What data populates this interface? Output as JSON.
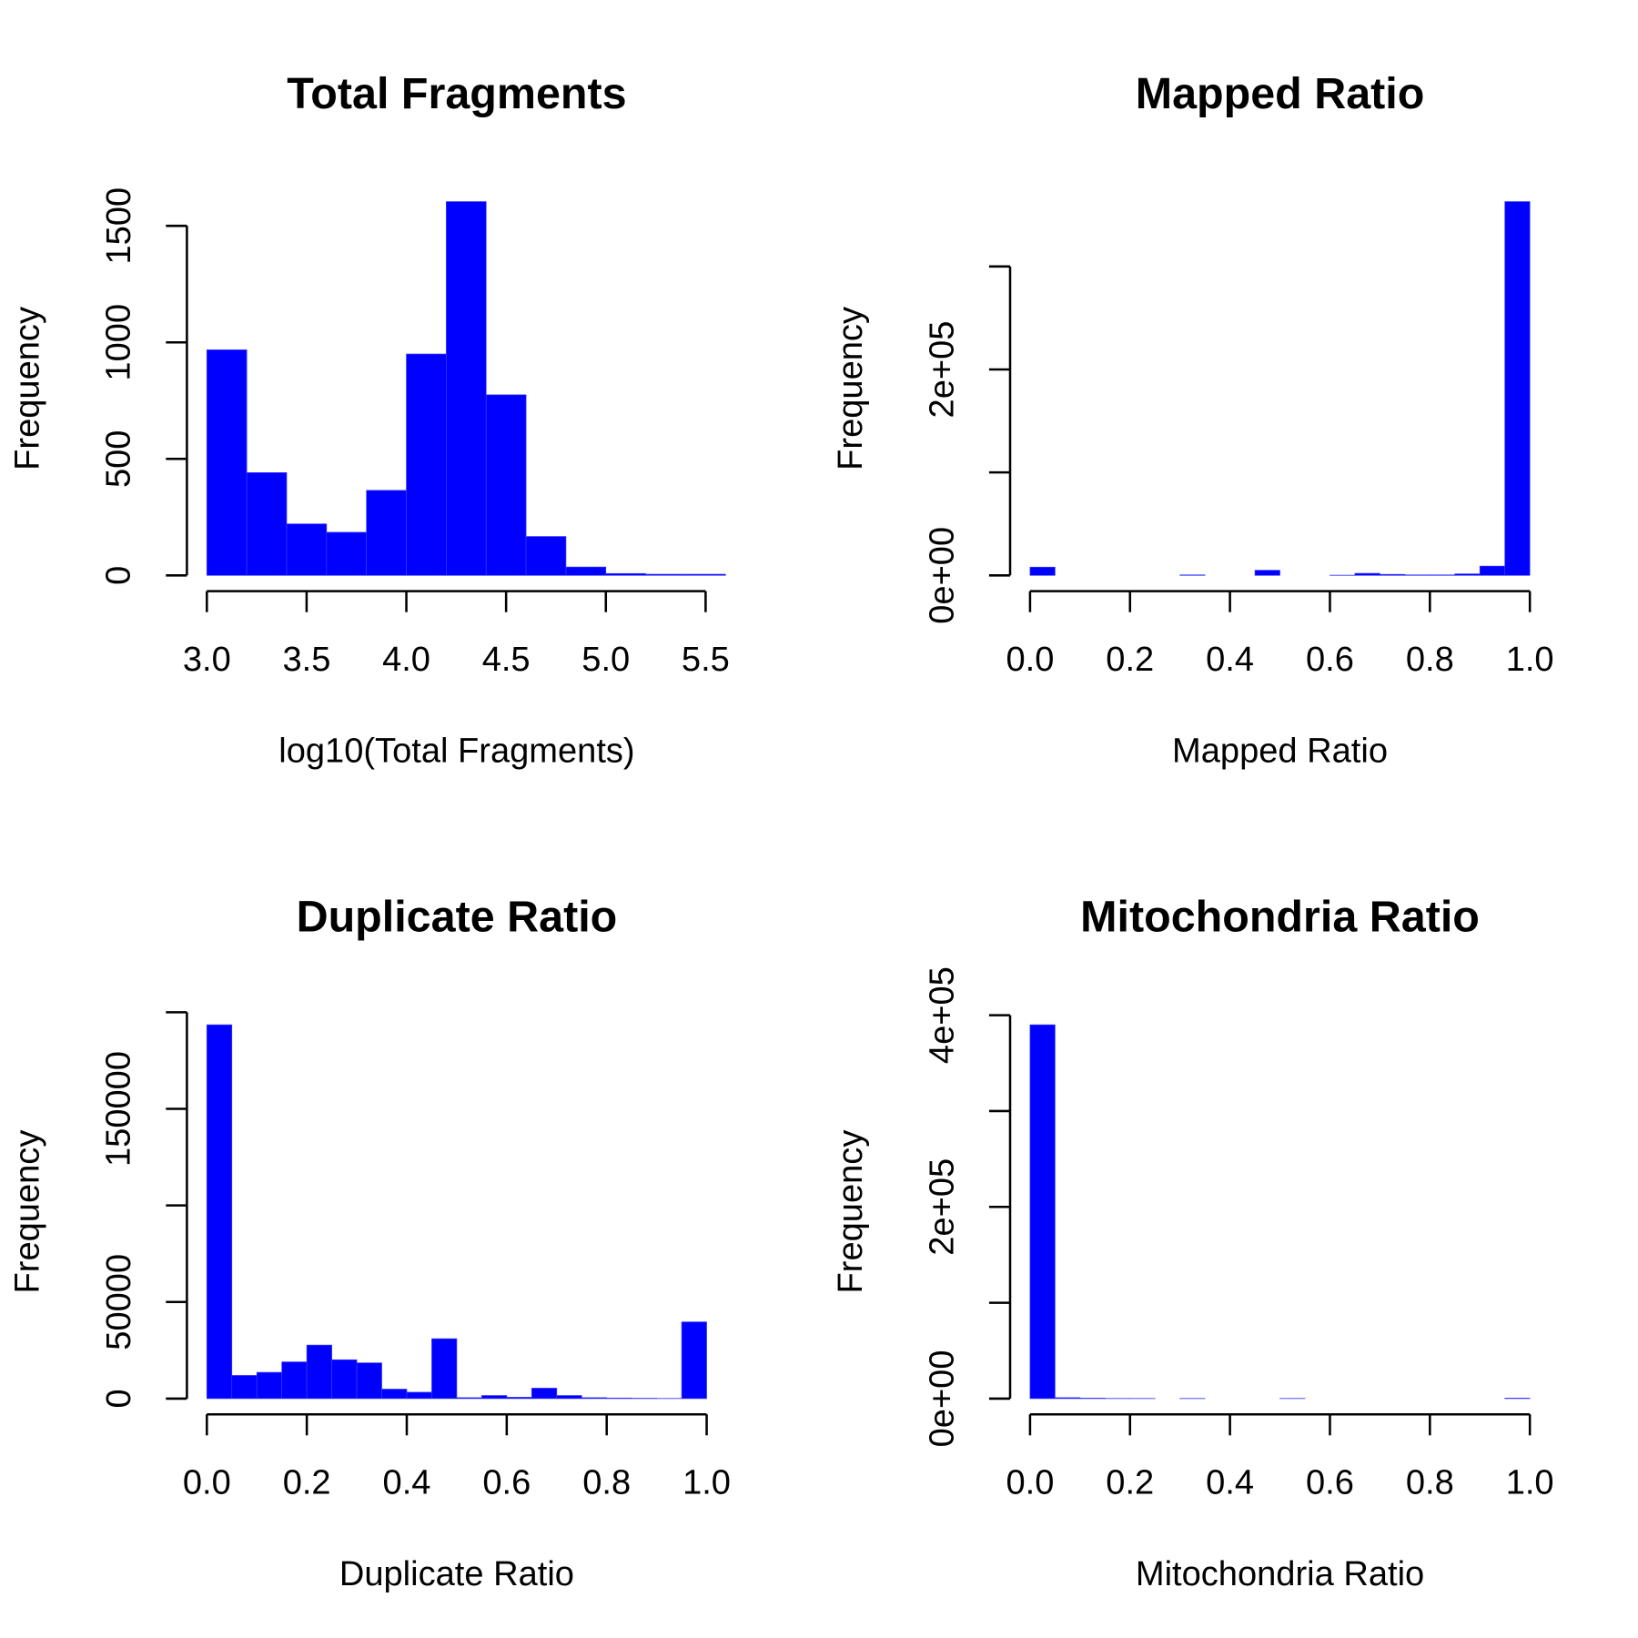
{
  "chart_data": [
    {
      "type": "histogram",
      "title": "Total Fragments",
      "x_label": "log10(Total Fragments)",
      "y_label": "Frequency",
      "color": "#0000ff",
      "bins": [
        3.0,
        3.2,
        3.4,
        3.6,
        3.8,
        4.0,
        4.2,
        4.4,
        4.6,
        4.8,
        5.0,
        5.2,
        5.4,
        5.6
      ],
      "counts": [
        968,
        441,
        221,
        185,
        365,
        950,
        1604,
        775,
        167,
        36,
        8,
        5,
        5
      ],
      "xlim": [
        3.0,
        5.6
      ],
      "ylim": [
        0,
        1604
      ],
      "xticks": [
        {
          "value": 3.0,
          "label": "3.0"
        },
        3.5,
        {
          "value": 4.0,
          "label": "4.0"
        },
        4.5,
        {
          "value": 5.0,
          "label": "5.0"
        },
        5.5
      ],
      "yticks": [
        0,
        500,
        1000,
        1500
      ]
    },
    {
      "type": "histogram",
      "title": "Mapped Ratio",
      "x_label": "Mapped Ratio",
      "y_label": "Frequency",
      "color": "#0000ff",
      "bins": [
        0,
        0.05,
        0.1,
        0.15,
        0.2,
        0.25,
        0.3,
        0.35,
        0.4,
        0.45,
        0.5,
        0.55,
        0.6,
        0.65,
        0.7,
        0.75,
        0.8,
        0.85,
        0.9,
        0.95,
        1.0
      ],
      "counts": [
        8000,
        0,
        0,
        0,
        0,
        0,
        500,
        0,
        0,
        5000,
        0,
        0,
        200,
        2000,
        1000,
        500,
        500,
        1500,
        9000,
        363000
      ],
      "xlim": [
        0,
        1.0
      ],
      "ylim": [
        0,
        363000
      ],
      "xticks": [
        {
          "value": 0,
          "label": "0.0"
        },
        0.2,
        0.4,
        0.6,
        0.8,
        {
          "value": 1.0,
          "label": "1.0"
        }
      ],
      "yticks": [
        {
          "value": 0,
          "label": "0e+00"
        },
        {
          "value": 100000
        },
        {
          "value": 200000,
          "label": "2e+05"
        },
        {
          "value": 300000
        }
      ]
    },
    {
      "type": "histogram",
      "title": "Duplicate Ratio",
      "x_label": "Duplicate Ratio",
      "y_label": "Frequency",
      "color": "#0000ff",
      "bins": [
        0,
        0.05,
        0.1,
        0.15,
        0.2,
        0.25,
        0.3,
        0.35,
        0.4,
        0.45,
        0.5,
        0.55,
        0.6,
        0.65,
        0.7,
        0.75,
        0.8,
        0.85,
        0.9,
        0.95,
        1.0
      ],
      "counts": [
        193500,
        12000,
        13600,
        19000,
        27700,
        20100,
        18500,
        4900,
        3300,
        31000,
        500,
        1600,
        700,
        5400,
        1600,
        500,
        300,
        200,
        100,
        39700
      ],
      "xlim": [
        0,
        1.0
      ],
      "ylim": [
        0,
        193500
      ],
      "xticks": [
        {
          "value": 0,
          "label": "0.0"
        },
        0.2,
        0.4,
        0.6,
        0.8,
        {
          "value": 1.0,
          "label": "1.0"
        }
      ],
      "yticks": [
        0,
        50000,
        {
          "value": 100000
        },
        150000,
        {
          "value": 200000
        }
      ]
    },
    {
      "type": "histogram",
      "title": "Mitochondria Ratio",
      "x_label": "Mitochondria Ratio",
      "y_label": "Frequency",
      "color": "#0000ff",
      "bins": [
        0,
        0.05,
        0.1,
        0.15,
        0.2,
        0.25,
        0.3,
        0.35,
        0.4,
        0.45,
        0.5,
        0.55,
        0.6,
        0.65,
        0.7,
        0.75,
        0.8,
        0.85,
        0.9,
        0.95,
        1.0
      ],
      "counts": [
        390000,
        1000,
        500,
        200,
        200,
        0,
        200,
        0,
        0,
        0,
        200,
        0,
        0,
        0,
        0,
        0,
        0,
        0,
        0,
        500
      ],
      "xlim": [
        0,
        1.0
      ],
      "ylim": [
        0,
        390000
      ],
      "xticks": [
        {
          "value": 0,
          "label": "0.0"
        },
        0.2,
        0.4,
        0.6,
        0.8,
        {
          "value": 1.0,
          "label": "1.0"
        }
      ],
      "yticks": [
        {
          "value": 0,
          "label": "0e+00"
        },
        {
          "value": 100000
        },
        {
          "value": 200000,
          "label": "2e+05"
        },
        {
          "value": 300000
        },
        {
          "value": 400000,
          "label": "4e+05"
        }
      ]
    }
  ]
}
